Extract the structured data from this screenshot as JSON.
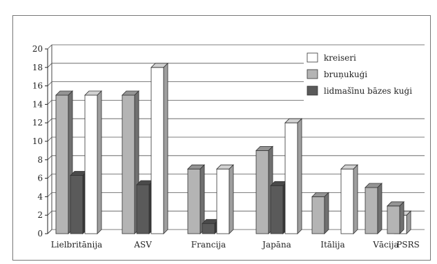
{
  "chart_data": {
    "type": "bar",
    "categories": [
      "Lielbritānija",
      "ASV",
      "Francija",
      "Japāna",
      "Itālija",
      "Vācija",
      "PSRS"
    ],
    "series": [
      {
        "name": "bruņukuģi",
        "values": [
          15,
          15,
          7,
          9,
          4,
          5,
          3
        ]
      },
      {
        "name": "lidmašīnu bāzes kuģi",
        "values": [
          6.3,
          5.3,
          1.1,
          5.2,
          null,
          null,
          null
        ]
      },
      {
        "name": "kreiseri",
        "values": [
          15,
          18,
          7,
          12,
          7,
          2,
          null
        ]
      }
    ],
    "legend_labels": [
      "kreiseri",
      "bruņukuģi",
      "lidmašīnu bāzes kuģi"
    ],
    "yticks": [
      "0",
      "2",
      "4",
      "6",
      "8",
      "10",
      "12",
      "14",
      "16",
      "18",
      "20"
    ],
    "ylim": [
      0,
      20
    ],
    "grid": true,
    "legend_position": "top-right",
    "title": "",
    "xlabel": "",
    "ylabel": "",
    "colors": {
      "bruņukuģi": "#b4b4b4",
      "lidmašīnu bāzes kuģi": "#5a5a5a",
      "kreiseri": "#ffffff"
    }
  }
}
